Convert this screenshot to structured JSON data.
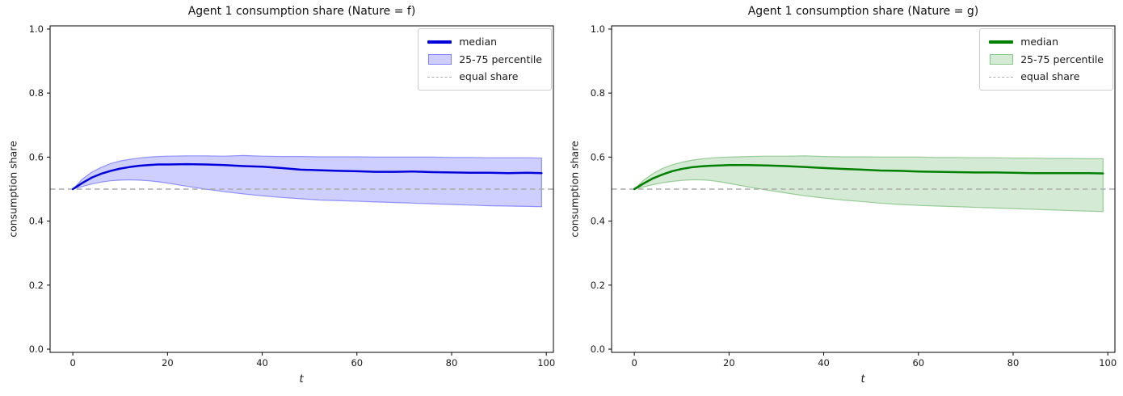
{
  "figure": {
    "background": "#ffffff"
  },
  "chart_data": [
    {
      "type": "line",
      "title": "Agent 1 consumption share (Nature = f)",
      "xlabel": "t",
      "ylabel": "consumption share",
      "xlim": [
        -4.8,
        101.5
      ],
      "ylim": [
        -0.01,
        1.01
      ],
      "xticks": [
        0,
        20,
        40,
        60,
        80,
        100
      ],
      "xtick_labels": [
        "0",
        "20",
        "40",
        "60",
        "80",
        "100"
      ],
      "yticks": [
        0.0,
        0.2,
        0.4,
        0.6,
        0.8,
        1.0
      ],
      "ytick_labels": [
        "0.0",
        "0.2",
        "0.4",
        "0.6",
        "0.8",
        "1.0"
      ],
      "grid": false,
      "legend_position": "upper right",
      "legend": {
        "median": "median",
        "band": "25-75 percentile",
        "equal": "equal share"
      },
      "equal_share_value": 0.5,
      "colors": {
        "median": "#0000dd",
        "band_fill": "rgba(0,0,255,0.19)",
        "band_edge": "rgba(0,0,255,0.38)",
        "equal_share": "#ababab",
        "axis": "#000000",
        "text": "#1a1a1a"
      },
      "x": [
        0,
        2,
        4,
        6,
        8,
        10,
        12,
        14,
        16,
        18,
        20,
        24,
        28,
        32,
        36,
        40,
        44,
        48,
        52,
        56,
        60,
        64,
        68,
        72,
        76,
        80,
        84,
        88,
        92,
        96,
        99
      ],
      "series": [
        {
          "name": "median",
          "values": [
            0.5,
            0.519,
            0.536,
            0.548,
            0.557,
            0.564,
            0.569,
            0.573,
            0.575,
            0.577,
            0.577,
            0.578,
            0.577,
            0.575,
            0.572,
            0.57,
            0.566,
            0.561,
            0.559,
            0.557,
            0.556,
            0.554,
            0.554,
            0.555,
            0.553,
            0.552,
            0.551,
            0.551,
            0.55,
            0.551,
            0.55
          ]
        },
        {
          "name": "p25",
          "values": [
            0.5,
            0.508,
            0.516,
            0.522,
            0.526,
            0.528,
            0.529,
            0.528,
            0.526,
            0.523,
            0.519,
            0.509,
            0.5,
            0.492,
            0.485,
            0.479,
            0.474,
            0.47,
            0.466,
            0.464,
            0.462,
            0.46,
            0.458,
            0.456,
            0.454,
            0.452,
            0.45,
            0.448,
            0.447,
            0.446,
            0.445
          ]
        },
        {
          "name": "p75",
          "values": [
            0.5,
            0.531,
            0.553,
            0.568,
            0.58,
            0.588,
            0.593,
            0.597,
            0.6,
            0.602,
            0.603,
            0.604,
            0.604,
            0.603,
            0.605,
            0.603,
            0.602,
            0.602,
            0.601,
            0.601,
            0.601,
            0.6,
            0.6,
            0.6,
            0.6,
            0.599,
            0.599,
            0.598,
            0.598,
            0.598,
            0.597
          ]
        }
      ]
    },
    {
      "type": "line",
      "title": "Agent 1 consumption share (Nature = g)",
      "xlabel": "t",
      "ylabel": "consumption share",
      "xlim": [
        -4.8,
        101.5
      ],
      "ylim": [
        -0.01,
        1.01
      ],
      "xticks": [
        0,
        20,
        40,
        60,
        80,
        100
      ],
      "xtick_labels": [
        "0",
        "20",
        "40",
        "60",
        "80",
        "100"
      ],
      "yticks": [
        0.0,
        0.2,
        0.4,
        0.6,
        0.8,
        1.0
      ],
      "ytick_labels": [
        "0.0",
        "0.2",
        "0.4",
        "0.6",
        "0.8",
        "1.0"
      ],
      "grid": false,
      "legend_position": "upper right",
      "legend": {
        "median": "median",
        "band": "25-75 percentile",
        "equal": "equal share"
      },
      "equal_share_value": 0.5,
      "colors": {
        "median": "#008000",
        "band_fill": "rgba(0,128,0,0.17)",
        "band_edge": "rgba(0,128,0,0.35)",
        "equal_share": "#ababab",
        "axis": "#000000",
        "text": "#1a1a1a"
      },
      "x": [
        0,
        2,
        4,
        6,
        8,
        10,
        12,
        14,
        16,
        18,
        20,
        24,
        28,
        32,
        36,
        40,
        44,
        48,
        52,
        56,
        60,
        64,
        68,
        72,
        76,
        80,
        84,
        88,
        92,
        96,
        99
      ],
      "series": [
        {
          "name": "median",
          "values": [
            0.5,
            0.518,
            0.534,
            0.546,
            0.556,
            0.563,
            0.568,
            0.571,
            0.573,
            0.574,
            0.575,
            0.575,
            0.574,
            0.572,
            0.569,
            0.566,
            0.563,
            0.561,
            0.558,
            0.557,
            0.555,
            0.554,
            0.553,
            0.552,
            0.552,
            0.551,
            0.55,
            0.55,
            0.55,
            0.55,
            0.549
          ]
        },
        {
          "name": "p25",
          "values": [
            0.5,
            0.507,
            0.514,
            0.52,
            0.524,
            0.527,
            0.529,
            0.529,
            0.527,
            0.523,
            0.518,
            0.507,
            0.497,
            0.488,
            0.479,
            0.472,
            0.466,
            0.461,
            0.456,
            0.452,
            0.449,
            0.447,
            0.445,
            0.443,
            0.441,
            0.439,
            0.437,
            0.435,
            0.433,
            0.431,
            0.43
          ]
        },
        {
          "name": "p75",
          "values": [
            0.5,
            0.528,
            0.549,
            0.565,
            0.576,
            0.584,
            0.59,
            0.594,
            0.597,
            0.599,
            0.6,
            0.602,
            0.603,
            0.603,
            0.604,
            0.602,
            0.601,
            0.601,
            0.6,
            0.6,
            0.6,
            0.599,
            0.599,
            0.598,
            0.598,
            0.597,
            0.597,
            0.596,
            0.596,
            0.595,
            0.595
          ]
        }
      ]
    }
  ]
}
